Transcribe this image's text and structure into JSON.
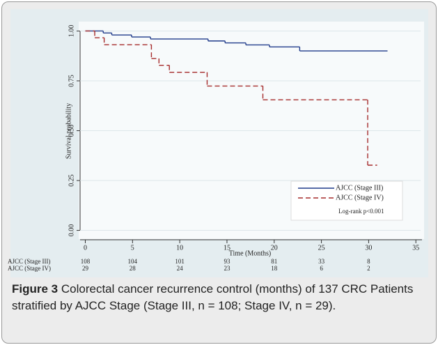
{
  "chart_data": {
    "type": "step",
    "ylabel": "Survival probability",
    "xlabel": "Time (Months)",
    "xlim": [
      -0.7,
      35.5
    ],
    "xticks": [
      0,
      5,
      10,
      15,
      20,
      25,
      30,
      35
    ],
    "ylim": [
      -0.04,
      1.04
    ],
    "yticks": [
      {
        "value": 0,
        "label": "0.00"
      },
      {
        "value": 0.25,
        "label": "0.25"
      },
      {
        "value": 0.5,
        "label": "0.50"
      },
      {
        "value": 0.75,
        "label": "0.75"
      },
      {
        "value": 1,
        "label": "1.00"
      }
    ],
    "grid": true,
    "legend_position": "lower right",
    "annotation": "Log-rank p<0.001",
    "series": [
      {
        "name": "AJCC (Stage III)",
        "color": "#1f3a8a",
        "dash": false,
        "x": [
          0,
          1.9,
          2.8,
          4.9,
          6.9,
          13,
          14.8,
          17,
          19.5,
          22.7,
          32
        ],
        "values": [
          1.0,
          0.99,
          0.98,
          0.97,
          0.96,
          0.95,
          0.94,
          0.93,
          0.92,
          0.9,
          0.9
        ]
      },
      {
        "name": "AJCC (Stage IV)",
        "color": "#a52a2a",
        "dash": true,
        "x": [
          0,
          1,
          2,
          7,
          7.8,
          8.9,
          12.9,
          18.8,
          29.9,
          30.9
        ],
        "values": [
          1.0,
          0.966,
          0.931,
          0.862,
          0.828,
          0.793,
          0.724,
          0.655,
          0.327,
          0.327
        ]
      }
    ],
    "risk_table": [
      {
        "label": "AJCC (Stage III)",
        "values": [
          108,
          104,
          101,
          93,
          81,
          33,
          8
        ]
      },
      {
        "label": "AJCC (Stage IV)",
        "values": [
          29,
          28,
          24,
          23,
          18,
          6,
          2
        ]
      }
    ]
  },
  "figure": {
    "label": "Figure 3",
    "caption": "Colorectal cancer recurrence control (months) of 137 CRC Patients stratified by AJCC Stage (Stage III, n = 108; Stage IV, n = 29)."
  }
}
